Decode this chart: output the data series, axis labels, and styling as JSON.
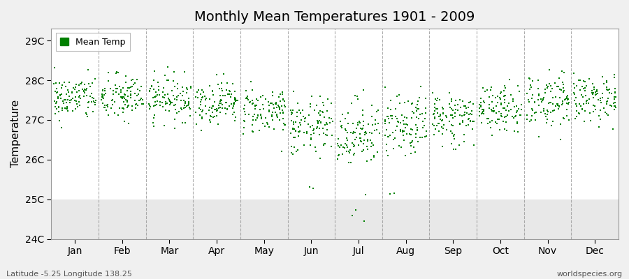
{
  "title": "Monthly Mean Temperatures 1901 - 2009",
  "ylabel": "Temperature",
  "xlabel": "",
  "dot_color": "#008000",
  "legend_label": "Mean Temp",
  "subtitle_left": "Latitude -5.25 Longitude 138.25",
  "subtitle_right": "worldspecies.org",
  "ylim": [
    24.0,
    29.3
  ],
  "yticks": [
    24,
    25,
    26,
    27,
    28,
    29
  ],
  "ytick_labels": [
    "24C",
    "25C",
    "26C",
    "27C",
    "28C",
    "29C"
  ],
  "months": [
    "Jan",
    "Feb",
    "Mar",
    "Apr",
    "May",
    "Jun",
    "Jul",
    "Aug",
    "Sep",
    "Oct",
    "Nov",
    "Dec"
  ],
  "monthly_mean": [
    27.55,
    27.55,
    27.55,
    27.45,
    27.25,
    26.8,
    26.65,
    26.8,
    27.05,
    27.3,
    27.5,
    27.55
  ],
  "monthly_std": [
    0.28,
    0.3,
    0.28,
    0.27,
    0.3,
    0.38,
    0.45,
    0.4,
    0.35,
    0.32,
    0.35,
    0.3
  ],
  "n_years": 109,
  "seed": 42,
  "figure_bg": "#f0f0f0",
  "plot_bg": "#ffffff",
  "shade_bg": "#e8e8e8",
  "shade_threshold": 25.0,
  "vline_color": "#999999",
  "marker_size": 2.5,
  "title_fontsize": 14,
  "axis_fontsize": 10,
  "legend_fontsize": 9
}
